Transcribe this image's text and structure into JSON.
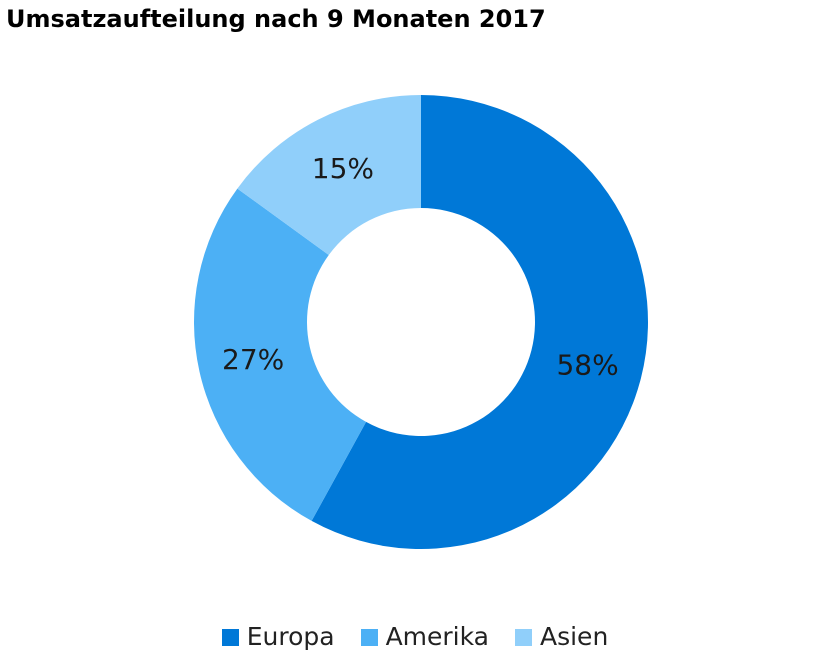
{
  "chart_data": {
    "type": "pie",
    "donut": true,
    "title": "Umsatzaufteilung nach 9 Monaten 2017",
    "categories": [
      "Europa",
      "Amerika",
      "Asien"
    ],
    "values": [
      58,
      27,
      15
    ],
    "labels": [
      "58%",
      "27%",
      "15%"
    ],
    "colors": [
      "#0078d7",
      "#4cb0f5",
      "#90cffa"
    ],
    "start_angle": "12 o'clock",
    "direction": "clockwise",
    "legend": "bottom-center"
  }
}
